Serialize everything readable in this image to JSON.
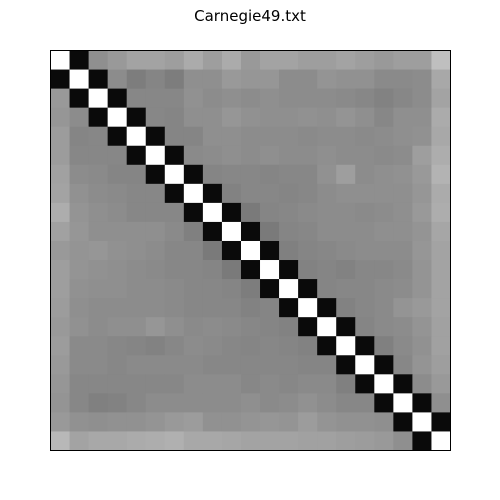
{
  "chart_data": {
    "type": "heatmap",
    "title": "Carnegie49.txt",
    "rows": 21,
    "cols": 21,
    "colormap": "gray",
    "vmin": 0,
    "vmax": 1,
    "values": [
      [
        1.0,
        0.04,
        0.56,
        0.6,
        0.64,
        0.64,
        0.62,
        0.67,
        0.62,
        0.67,
        0.6,
        0.64,
        0.64,
        0.62,
        0.62,
        0.64,
        0.62,
        0.6,
        0.62,
        0.62,
        0.75
      ],
      [
        0.04,
        1.0,
        0.04,
        0.55,
        0.49,
        0.52,
        0.49,
        0.56,
        0.56,
        0.6,
        0.59,
        0.59,
        0.55,
        0.55,
        0.58,
        0.57,
        0.57,
        0.54,
        0.54,
        0.55,
        0.66
      ],
      [
        0.6,
        0.04,
        1.0,
        0.04,
        0.53,
        0.53,
        0.53,
        0.57,
        0.55,
        0.56,
        0.55,
        0.56,
        0.55,
        0.55,
        0.55,
        0.54,
        0.53,
        0.51,
        0.53,
        0.55,
        0.64
      ],
      [
        0.59,
        0.55,
        0.04,
        1.0,
        0.04,
        0.53,
        0.52,
        0.56,
        0.56,
        0.59,
        0.57,
        0.56,
        0.56,
        0.57,
        0.56,
        0.58,
        0.56,
        0.53,
        0.56,
        0.56,
        0.67
      ],
      [
        0.61,
        0.52,
        0.53,
        0.04,
        1.0,
        0.04,
        0.52,
        0.52,
        0.56,
        0.56,
        0.55,
        0.55,
        0.55,
        0.54,
        0.55,
        0.55,
        0.54,
        0.55,
        0.56,
        0.57,
        0.66
      ],
      [
        0.61,
        0.53,
        0.53,
        0.53,
        0.04,
        1.0,
        0.04,
        0.54,
        0.55,
        0.56,
        0.55,
        0.56,
        0.55,
        0.55,
        0.56,
        0.55,
        0.55,
        0.54,
        0.55,
        0.62,
        0.68
      ],
      [
        0.63,
        0.55,
        0.54,
        0.52,
        0.52,
        0.04,
        1.0,
        0.04,
        0.52,
        0.53,
        0.53,
        0.52,
        0.53,
        0.53,
        0.57,
        0.62,
        0.55,
        0.56,
        0.57,
        0.6,
        0.7
      ],
      [
        0.64,
        0.57,
        0.55,
        0.54,
        0.53,
        0.53,
        0.04,
        1.0,
        0.04,
        0.51,
        0.53,
        0.53,
        0.52,
        0.53,
        0.55,
        0.56,
        0.56,
        0.56,
        0.56,
        0.59,
        0.67
      ],
      [
        0.68,
        0.58,
        0.56,
        0.55,
        0.53,
        0.53,
        0.53,
        0.04,
        1.0,
        0.04,
        0.48,
        0.52,
        0.53,
        0.54,
        0.55,
        0.55,
        0.54,
        0.55,
        0.56,
        0.6,
        0.68
      ],
      [
        0.63,
        0.59,
        0.56,
        0.56,
        0.56,
        0.56,
        0.54,
        0.5,
        0.04,
        1.0,
        0.04,
        0.48,
        0.52,
        0.53,
        0.55,
        0.55,
        0.55,
        0.56,
        0.56,
        0.58,
        0.65
      ],
      [
        0.6,
        0.58,
        0.59,
        0.57,
        0.56,
        0.55,
        0.53,
        0.53,
        0.48,
        0.04,
        1.0,
        0.04,
        0.5,
        0.52,
        0.53,
        0.54,
        0.55,
        0.55,
        0.55,
        0.59,
        0.64
      ],
      [
        0.62,
        0.58,
        0.57,
        0.56,
        0.55,
        0.54,
        0.53,
        0.53,
        0.52,
        0.48,
        0.04,
        1.0,
        0.04,
        0.51,
        0.52,
        0.51,
        0.53,
        0.53,
        0.54,
        0.58,
        0.64
      ],
      [
        0.62,
        0.57,
        0.56,
        0.56,
        0.55,
        0.55,
        0.54,
        0.53,
        0.53,
        0.52,
        0.49,
        0.04,
        1.0,
        0.04,
        0.52,
        0.53,
        0.53,
        0.54,
        0.55,
        0.58,
        0.64
      ],
      [
        0.61,
        0.56,
        0.55,
        0.55,
        0.55,
        0.55,
        0.54,
        0.53,
        0.53,
        0.53,
        0.51,
        0.52,
        0.04,
        1.0,
        0.04,
        0.51,
        0.53,
        0.54,
        0.58,
        0.6,
        0.64
      ],
      [
        0.6,
        0.57,
        0.55,
        0.56,
        0.56,
        0.59,
        0.56,
        0.54,
        0.55,
        0.54,
        0.53,
        0.52,
        0.51,
        0.04,
        1.0,
        0.04,
        0.52,
        0.54,
        0.55,
        0.58,
        0.63
      ],
      [
        0.61,
        0.54,
        0.54,
        0.53,
        0.52,
        0.51,
        0.53,
        0.55,
        0.54,
        0.53,
        0.52,
        0.53,
        0.52,
        0.51,
        0.04,
        1.0,
        0.04,
        0.5,
        0.54,
        0.57,
        0.63
      ],
      [
        0.6,
        0.54,
        0.54,
        0.53,
        0.54,
        0.54,
        0.54,
        0.54,
        0.53,
        0.53,
        0.53,
        0.53,
        0.53,
        0.52,
        0.52,
        0.04,
        1.0,
        0.04,
        0.53,
        0.58,
        0.62
      ],
      [
        0.59,
        0.53,
        0.53,
        0.53,
        0.53,
        0.53,
        0.53,
        0.55,
        0.55,
        0.55,
        0.53,
        0.54,
        0.53,
        0.54,
        0.54,
        0.5,
        0.04,
        1.0,
        0.04,
        0.55,
        0.6
      ],
      [
        0.58,
        0.53,
        0.5,
        0.51,
        0.53,
        0.55,
        0.55,
        0.55,
        0.55,
        0.55,
        0.56,
        0.54,
        0.55,
        0.57,
        0.55,
        0.53,
        0.53,
        0.04,
        1.0,
        0.04,
        0.56
      ],
      [
        0.6,
        0.57,
        0.56,
        0.57,
        0.57,
        0.58,
        0.6,
        0.61,
        0.57,
        0.57,
        0.58,
        0.59,
        0.58,
        0.61,
        0.58,
        0.57,
        0.57,
        0.56,
        0.04,
        1.0,
        0.04
      ],
      [
        0.72,
        0.64,
        0.66,
        0.66,
        0.67,
        0.68,
        0.69,
        0.66,
        0.66,
        0.65,
        0.64,
        0.64,
        0.64,
        0.63,
        0.63,
        0.62,
        0.61,
        0.6,
        0.56,
        0.04,
        1.0
      ]
    ]
  }
}
